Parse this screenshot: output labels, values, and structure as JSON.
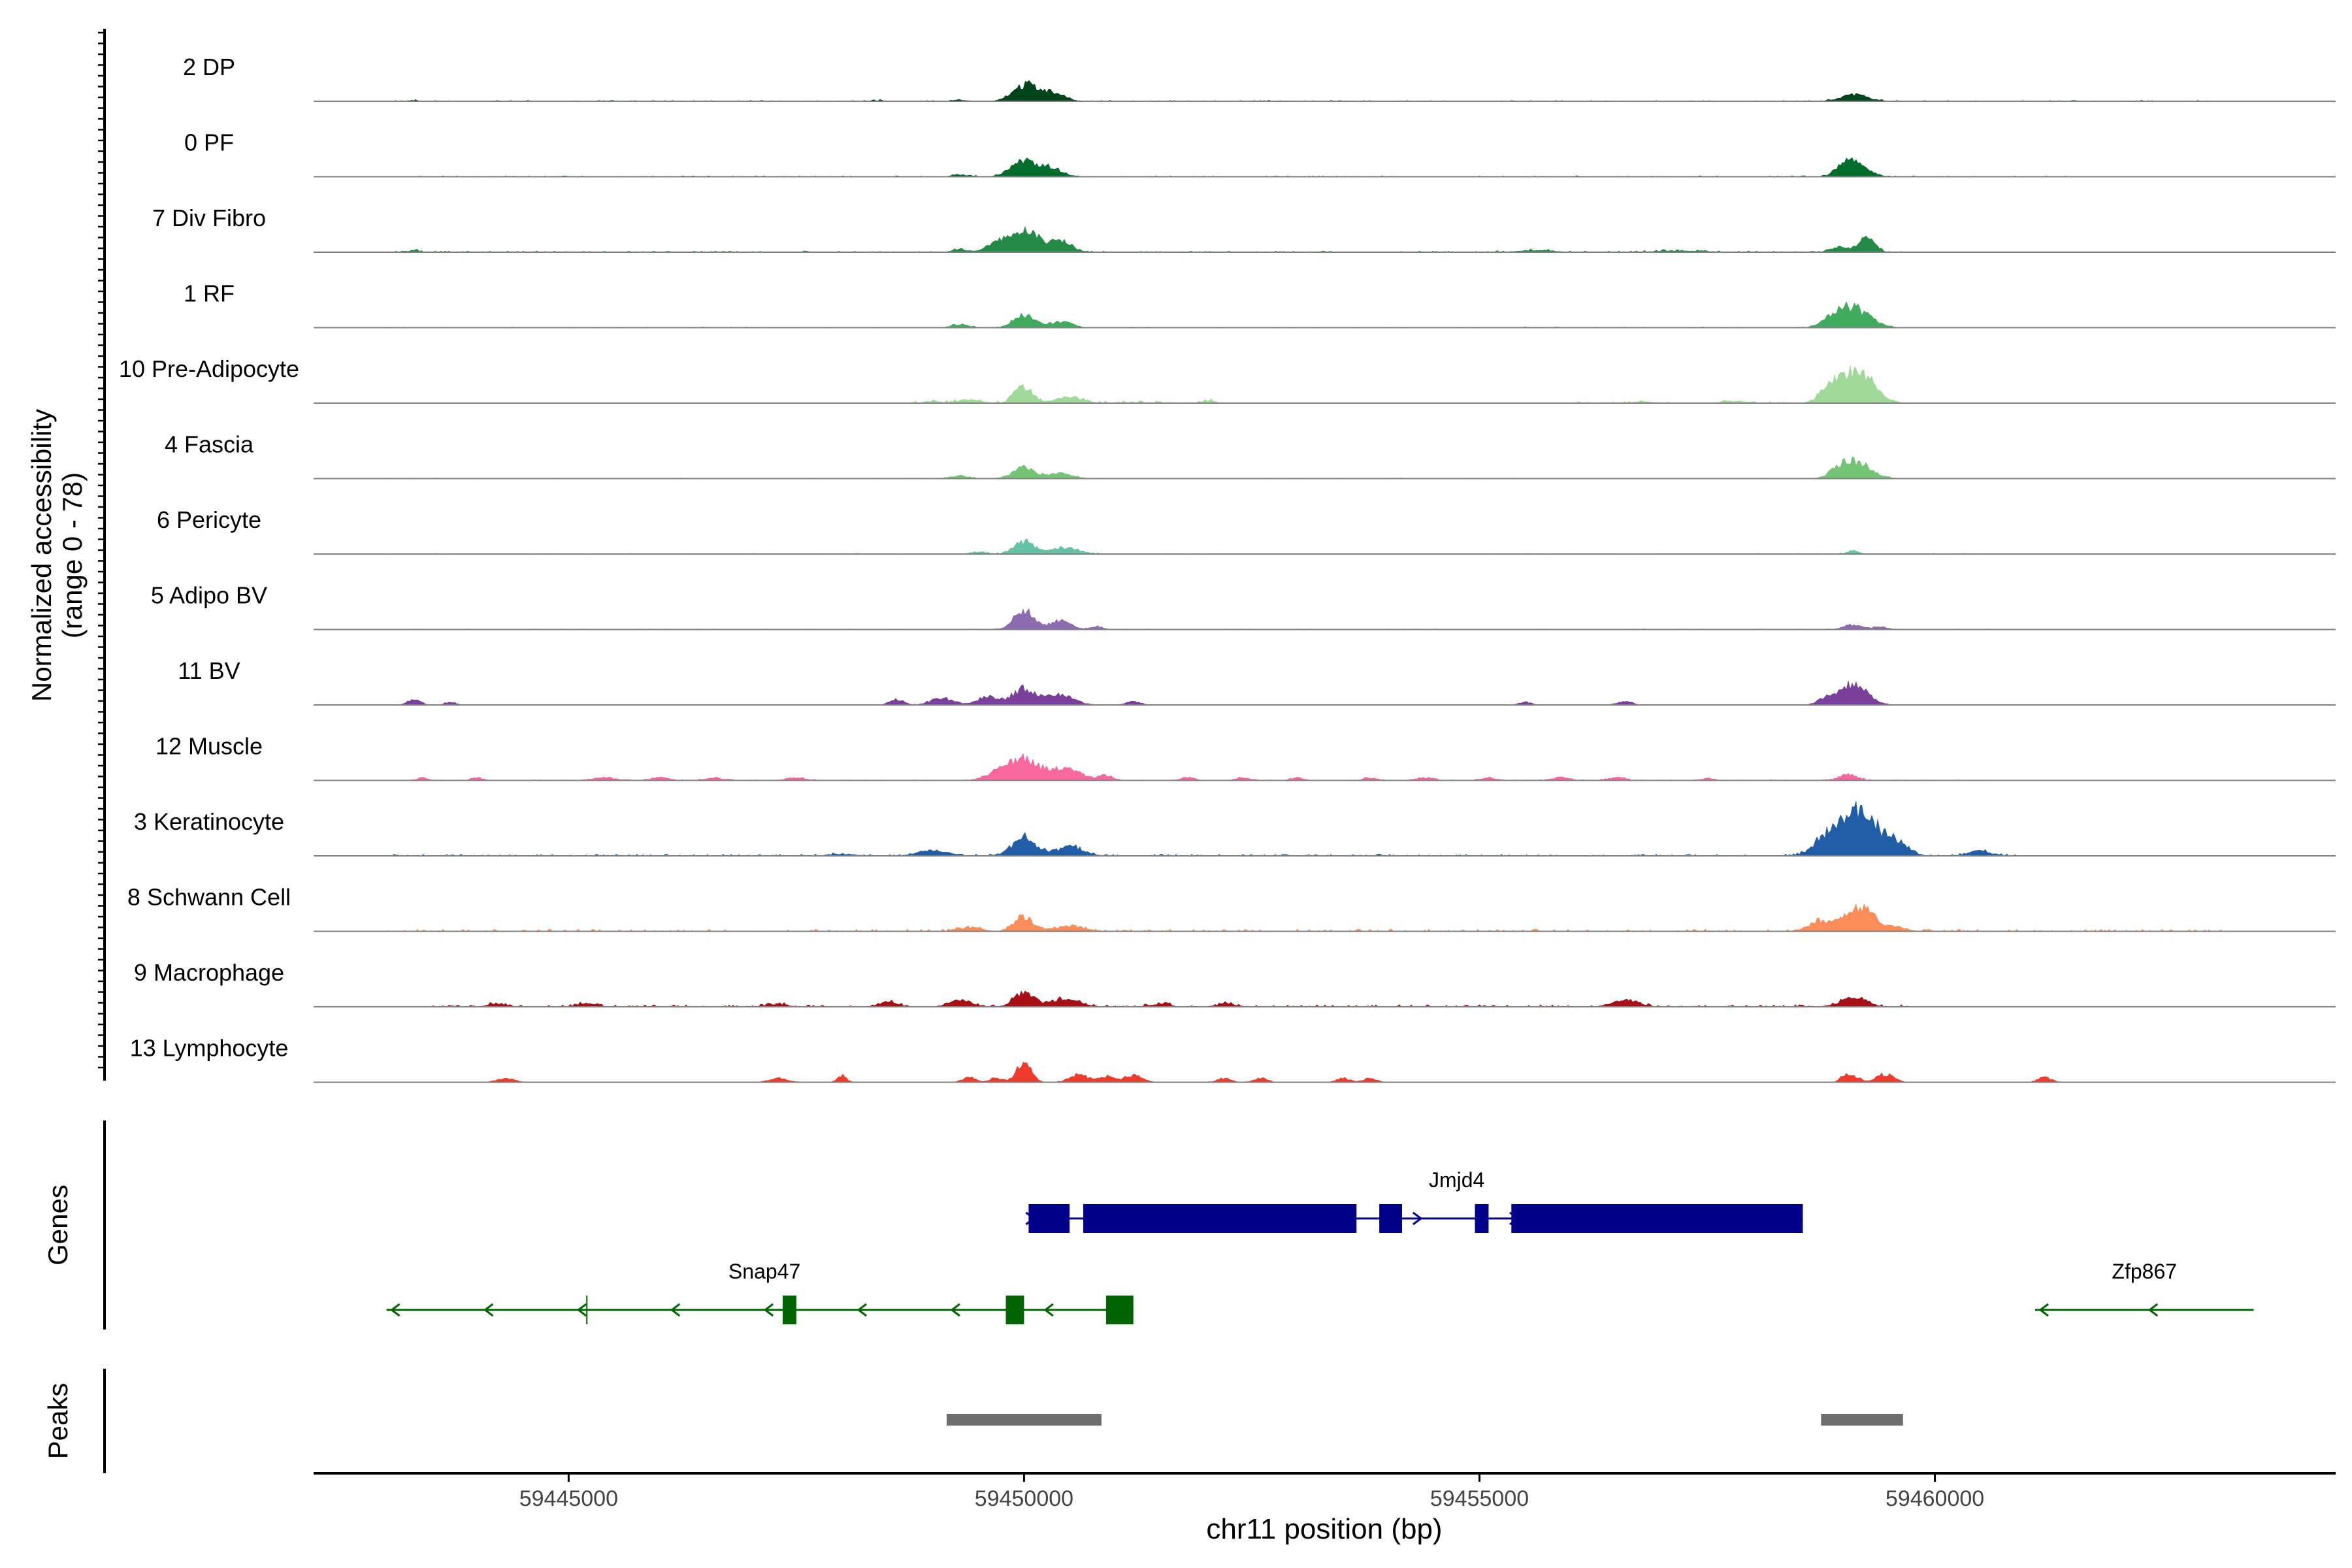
{
  "chart_data": {
    "type": "area",
    "title": "",
    "chromosome": "chr11",
    "xlabel": "chr11 position (bp)",
    "ylabel": "Normalized accessibility",
    "ylabel_range": "(range 0 - 78)",
    "ylim": [
      0,
      78
    ],
    "xlim": [
      59442200,
      59464400
    ],
    "x_ticks": [
      59445000,
      59450000,
      59455000,
      59460000
    ],
    "x_tick_labels": [
      "59445000",
      "59450000",
      "59455000",
      "59460000"
    ],
    "tracks": [
      {
        "name": "2 DP",
        "color": "#00441b",
        "peaks": [
          [
            59450000,
            16,
            260
          ],
          [
            59450300,
            9,
            260
          ],
          [
            59459120,
            7,
            280
          ],
          [
            59449300,
            1.5,
            160
          ],
          [
            59443300,
            1,
            120
          ],
          [
            59448400,
            0.8,
            160
          ]
        ],
        "noise": [
          [
            59443000,
            59463500,
            0.6
          ]
        ]
      },
      {
        "name": "0 PF",
        "color": "#006d2c",
        "peaks": [
          [
            59450000,
            15,
            280
          ],
          [
            59450300,
            8,
            250
          ],
          [
            59449300,
            2,
            200
          ],
          [
            59459120,
            13,
            280
          ],
          [
            59459000,
            6,
            180
          ]
        ],
        "noise": [
          [
            59443000,
            59461500,
            0.6
          ]
        ]
      },
      {
        "name": "7 Div Fibro",
        "color": "#238b45",
        "peaks": [
          [
            59450000,
            22,
            300
          ],
          [
            59450400,
            11,
            250
          ],
          [
            59449700,
            8,
            220
          ],
          [
            59459250,
            14,
            180
          ],
          [
            59458950,
            5,
            200
          ],
          [
            59449300,
            3,
            180
          ],
          [
            59443300,
            2,
            120
          ],
          [
            59455600,
            2,
            400
          ],
          [
            59457200,
            1.5,
            600
          ]
        ],
        "noise": [
          [
            59443000,
            59459800,
            0.8
          ]
        ]
      },
      {
        "name": "1 RF",
        "color": "#41ab5d",
        "peaks": [
          [
            59450000,
            13,
            220
          ],
          [
            59450400,
            6,
            250
          ],
          [
            59449300,
            3,
            200
          ],
          [
            59459100,
            19,
            360
          ],
          [
            59458900,
            6,
            250
          ]
        ],
        "noise": [
          [
            59443000,
            59459600,
            0.5
          ]
        ]
      },
      {
        "name": "10 Pre-Adipocyte",
        "color": "#a1d99b",
        "peaks": [
          [
            59450000,
            17,
            200
          ],
          [
            59450500,
            6,
            300
          ],
          [
            59449400,
            4,
            220
          ],
          [
            59449000,
            2,
            180
          ],
          [
            59452050,
            3,
            100
          ],
          [
            59459130,
            32,
            380
          ],
          [
            59458850,
            10,
            220
          ],
          [
            59456800,
            2,
            200
          ],
          [
            59457800,
            2,
            300
          ]
        ],
        "noise": [
          [
            59448800,
            59452100,
            1.2
          ],
          [
            59456000,
            59459600,
            0.8
          ]
        ]
      },
      {
        "name": "4 Fascia",
        "color": "#74c476",
        "peaks": [
          [
            59450000,
            11,
            240
          ],
          [
            59450400,
            5,
            280
          ],
          [
            59449300,
            3,
            200
          ],
          [
            59459130,
            17,
            330
          ],
          [
            59458950,
            5,
            200
          ]
        ],
        "noise": [
          [
            59443000,
            59459600,
            0.4
          ]
        ]
      },
      {
        "name": "6 Pericyte",
        "color": "#66c2a4",
        "peaks": [
          [
            59450000,
            13,
            220
          ],
          [
            59450450,
            7,
            300
          ],
          [
            59449500,
            2,
            200
          ],
          [
            59459100,
            3,
            150
          ]
        ],
        "noise": [
          [
            59443000,
            59461000,
            0.5
          ]
        ]
      },
      {
        "name": "5 Adipo BV",
        "color": "#8c6bb1",
        "peaks": [
          [
            59450000,
            19,
            220
          ],
          [
            59450400,
            9,
            220
          ],
          [
            59450800,
            3,
            150
          ],
          [
            59459100,
            5,
            200
          ],
          [
            59459400,
            3,
            150
          ]
        ],
        "noise": [
          [
            59443000,
            59461000,
            0.4
          ]
        ]
      },
      {
        "name": "11 BV",
        "color": "#7a3f9a",
        "peaks": [
          [
            59450000,
            17,
            250
          ],
          [
            59450400,
            10,
            300
          ],
          [
            59449600,
            8,
            250
          ],
          [
            59449100,
            7,
            250
          ],
          [
            59448600,
            6,
            150
          ],
          [
            59451200,
            4,
            150
          ],
          [
            59459100,
            21,
            300
          ],
          [
            59443300,
            5,
            150
          ],
          [
            59443700,
            3,
            120
          ],
          [
            59455500,
            3,
            150
          ],
          [
            59456600,
            4,
            150
          ],
          [
            59458800,
            5,
            200
          ]
        ],
        "noise": [
          [
            59443200,
            59459700,
            0.3
          ]
        ]
      },
      {
        "name": "12 Muscle",
        "color": "#f768a1",
        "peaks": [
          [
            59450000,
            22,
            300
          ],
          [
            59450450,
            12,
            350
          ],
          [
            59449700,
            8,
            250
          ],
          [
            59450900,
            5,
            150
          ],
          [
            59459050,
            6,
            200
          ],
          [
            59443400,
            3,
            120
          ],
          [
            59444000,
            3,
            120
          ],
          [
            59445400,
            3,
            250
          ],
          [
            59446000,
            3,
            200
          ],
          [
            59446600,
            3,
            200
          ],
          [
            59447500,
            3,
            200
          ],
          [
            59451800,
            3,
            150
          ],
          [
            59452400,
            3,
            150
          ],
          [
            59453000,
            3,
            150
          ],
          [
            59453800,
            3,
            150
          ],
          [
            59454400,
            3,
            200
          ],
          [
            59455100,
            3,
            150
          ],
          [
            59455900,
            3,
            200
          ],
          [
            59456500,
            3,
            200
          ],
          [
            59457500,
            2,
            150
          ]
        ],
        "noise": [
          [
            59443200,
            59461000,
            0.5
          ]
        ]
      },
      {
        "name": "3 Keratinocyte",
        "color": "#225ea8",
        "peaks": [
          [
            59450000,
            19,
            250
          ],
          [
            59450500,
            9,
            300
          ],
          [
            59449000,
            5,
            350
          ],
          [
            59459170,
            44,
            420
          ],
          [
            59458800,
            15,
            280
          ],
          [
            59459600,
            10,
            250
          ],
          [
            59460500,
            5,
            250
          ],
          [
            59448000,
            2,
            300
          ]
        ],
        "noise": [
          [
            59443000,
            59460900,
            1.0
          ]
        ]
      },
      {
        "name": "8 Schwann Cell",
        "color": "#fc8d59",
        "peaks": [
          [
            59450000,
            14,
            220
          ],
          [
            59450500,
            6,
            300
          ],
          [
            59449400,
            4,
            250
          ],
          [
            59459180,
            25,
            300
          ],
          [
            59458750,
            10,
            280
          ],
          [
            59459600,
            4,
            200
          ]
        ],
        "noise": [
          [
            59443000,
            59463200,
            1.2
          ]
        ]
      },
      {
        "name": "9 Macrophage",
        "color": "#a50f15",
        "peaks": [
          [
            59450000,
            14,
            220
          ],
          [
            59450450,
            8,
            300
          ],
          [
            59449300,
            6,
            250
          ],
          [
            59448500,
            5,
            200
          ],
          [
            59459100,
            8,
            300
          ],
          [
            59456600,
            6,
            300
          ],
          [
            59444200,
            3,
            200
          ],
          [
            59445200,
            3,
            200
          ],
          [
            59447300,
            3,
            200
          ],
          [
            59451500,
            3,
            200
          ],
          [
            59452200,
            3,
            200
          ]
        ],
        "noise": [
          [
            59443500,
            59459800,
            1.2
          ]
        ]
      },
      {
        "name": "13 Lymphocyte",
        "color": "#ef3b2c",
        "peaks": [
          [
            59450000,
            20,
            160
          ],
          [
            59450600,
            8,
            200
          ],
          [
            59451200,
            7,
            200
          ],
          [
            59450900,
            6,
            150
          ],
          [
            59449400,
            5,
            150
          ],
          [
            59449700,
            4,
            150
          ],
          [
            59444300,
            4,
            200
          ],
          [
            59447300,
            4,
            200
          ],
          [
            59448000,
            7,
            100
          ],
          [
            59452200,
            4,
            150
          ],
          [
            59452600,
            4,
            150
          ],
          [
            59453500,
            4,
            150
          ],
          [
            59453800,
            4,
            150
          ],
          [
            59459100,
            6,
            150
          ],
          [
            59459450,
            8,
            200
          ],
          [
            59459000,
            5,
            100
          ],
          [
            59461200,
            5,
            150
          ]
        ],
        "noise": [
          [
            59443800,
            59461400,
            0.3
          ]
        ]
      }
    ],
    "genes_label": "Genes",
    "genes": [
      {
        "name": "Jmjd4",
        "strand": "+",
        "start": 59450050,
        "end": 59458550,
        "color": "#00008b",
        "label_pos": 59454750,
        "exons": [
          [
            59450050,
            59450500
          ],
          [
            59450650,
            59453650
          ],
          [
            59453900,
            59454150
          ],
          [
            59454950,
            59455100
          ],
          [
            59455350,
            59458550
          ]
        ]
      },
      {
        "name": "Snap47",
        "strand": "-",
        "start": 59443000,
        "end": 59451200,
        "color": "#006400",
        "label_pos": 59447150,
        "exons": [
          [
            59447350,
            59447500
          ],
          [
            59449800,
            59450000
          ],
          [
            59450900,
            59451200
          ]
        ],
        "tick": 59445200
      },
      {
        "name": "Zfp867",
        "strand": "-",
        "start": 59461100,
        "end": 59463500,
        "color": "#006400",
        "label_pos": 59462300,
        "exons": []
      }
    ],
    "peaks_label": "Peaks",
    "peaks": [
      [
        59449150,
        59450850
      ],
      [
        59458750,
        59459650
      ]
    ]
  }
}
